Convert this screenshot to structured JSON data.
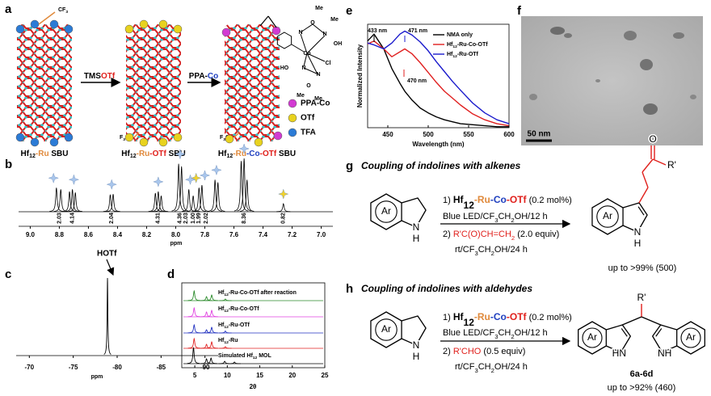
{
  "a": {
    "letter": "a",
    "cf3": [
      "CF",
      "3"
    ],
    "f3c": [
      "F",
      "3",
      "C"
    ],
    "f3c_2": [
      "F",
      "3",
      "C"
    ],
    "arrow1": [
      "TMS",
      "OTf"
    ],
    "arrow2": [
      "PPA-",
      "Co"
    ],
    "sbu1": [
      "Hf",
      "12",
      "-Ru",
      " SBU"
    ],
    "sbu2": [
      "Hf",
      "12",
      "-Ru",
      "-OTf",
      " SBU"
    ],
    "sbu3": [
      "Hf",
      "12",
      "-Ru",
      "-Co",
      "-OTf",
      " SBU"
    ],
    "legend": [
      {
        "name": "PPA-Co",
        "color": "#d23ad2"
      },
      {
        "name": "OTf",
        "color": "#e8d21e"
      },
      {
        "name": "TFA",
        "color": "#2b7bd6"
      }
    ],
    "complex_atoms": [
      "Me",
      "Me",
      "N",
      "O",
      "N",
      "OH",
      "Co",
      "Cl",
      "HO",
      "N",
      "N",
      "O",
      "Me",
      "Me"
    ]
  },
  "b": {
    "letter": "b",
    "xlabel": "ppm",
    "xlim": [
      9.08,
      6.92
    ],
    "xticks": [
      {
        "value": 9,
        "label": "9.0"
      },
      8.8,
      8.6,
      8.4,
      8.2,
      {
        "value": 8,
        "label": "8.0"
      },
      7.8,
      7.6,
      7.4,
      7.2,
      {
        "value": 7,
        "label": "7.0"
      }
    ],
    "peak_ppm": [
      8.82,
      8.79,
      8.73,
      8.71,
      8.69,
      8.45,
      8.43,
      8.14,
      8.12,
      8.1,
      7.98,
      7.96,
      7.91,
      7.88,
      7.84,
      7.82,
      7.73,
      7.71,
      7.55,
      7.53,
      7.51,
      7.26
    ],
    "peak_height": [
      0.45,
      0.42,
      0.38,
      0.42,
      0.36,
      0.32,
      0.33,
      0.35,
      0.38,
      0.3,
      0.9,
      0.85,
      0.42,
      0.3,
      0.45,
      0.5,
      0.6,
      0.55,
      0.95,
      1.0,
      0.6,
      0.15
    ],
    "star_ppm": [
      8.84,
      8.7,
      8.44,
      8.12,
      7.97,
      7.9,
      7.8,
      7.72,
      7.53
    ],
    "yellow_star_ppm": [
      7.86,
      7.26
    ],
    "integrals": [
      {
        "label": "2.03",
        "ppm": 8.8
      },
      {
        "label": "4.14",
        "ppm": 8.71
      },
      {
        "label": "2.04",
        "ppm": 8.44
      },
      {
        "label": "4.31",
        "ppm": 8.12
      },
      {
        "label": "4.36",
        "ppm": 7.97
      },
      {
        "label": "2.03",
        "ppm": 7.93
      },
      {
        "label": "1.00",
        "ppm": 7.88
      },
      {
        "label": "1.99",
        "ppm": 7.84
      },
      {
        "label": "2.02",
        "ppm": 7.79
      },
      {
        "label": "8.36",
        "ppm": 7.53
      },
      {
        "label": "0.82",
        "ppm": 7.26
      }
    ]
  },
  "c": {
    "letter": "c",
    "annotation": "HOTf",
    "xlabel": "ppm",
    "xlim": [
      -68.5,
      -91.5
    ],
    "xticks": [
      -70,
      -75,
      -80,
      -85,
      -90
    ],
    "peak_ppm": [
      -78.9
    ],
    "peak_height": [
      1
    ]
  },
  "d": {
    "letter": "d",
    "xlabel": "2θ",
    "xlim": [
      3,
      25
    ],
    "xticks": [
      5,
      10,
      15,
      20,
      25
    ],
    "series": [
      {
        "name": [
          "Hf",
          "12",
          "-Ru-Co-OTf after reaction"
        ],
        "color": "#2a8a2a",
        "peak_pos": [
          4.9,
          6.8,
          7.6,
          9.7
        ],
        "peak_height": [
          0.6,
          0.25,
          0.35,
          0.1
        ]
      },
      {
        "name": [
          "Hf",
          "12",
          "-Ru-Co-OTf"
        ],
        "color": "#e040e0",
        "peak_pos": [
          4.9,
          6.8,
          7.6
        ],
        "peak_height": [
          0.55,
          0.3,
          0.4
        ]
      },
      {
        "name": [
          "Hf",
          "12",
          "-Ru-OTf"
        ],
        "color": "#2030c0",
        "peak_pos": [
          4.9,
          6.8,
          7.6,
          9.7
        ],
        "peak_height": [
          0.5,
          0.2,
          0.35,
          0.12
        ]
      },
      {
        "name": [
          "Hf",
          "12",
          "-Ru"
        ],
        "color": "#e02020",
        "peak_pos": [
          4.9,
          6.8,
          7.6,
          9.7
        ],
        "peak_height": [
          0.6,
          0.25,
          0.4,
          0.1
        ]
      },
      {
        "name": [
          "Simulated Hf",
          "12",
          " MOL"
        ],
        "color": "#000000",
        "peak_pos": [
          4.8,
          6.8,
          7.5,
          9.6,
          11.1
        ],
        "peak_height": [
          1.0,
          0.3,
          0.35,
          0.15,
          0.1
        ]
      }
    ]
  },
  "e": {
    "letter": "e",
    "xlabel": "Wavelength (nm)",
    "ylabel": "Normalized Intensity",
    "xlim": [
      425,
      600
    ],
    "ylim": [
      0,
      1.05
    ],
    "xticks": [
      450,
      500,
      550,
      600
    ],
    "x": [
      425,
      433,
      445,
      455,
      465,
      471,
      480,
      490,
      500,
      510,
      520,
      530,
      540,
      555,
      570,
      585,
      600
    ],
    "series": [
      {
        "name": [
          "NMA only"
        ],
        "color": "#000000",
        "values": [
          0.88,
          0.95,
          0.8,
          0.6,
          0.45,
          0.37,
          0.28,
          0.2,
          0.15,
          0.11,
          0.08,
          0.06,
          0.04,
          0.03,
          0.02,
          0.01,
          0.01
        ]
      },
      {
        "name": [
          "Hf",
          "12",
          "-Ru-Co-OTf"
        ],
        "color": "#e02020",
        "values": [
          0.85,
          0.88,
          0.8,
          0.72,
          0.77,
          0.8,
          0.75,
          0.66,
          0.56,
          0.46,
          0.37,
          0.3,
          0.23,
          0.14,
          0.08,
          0.04,
          0.02
        ]
      },
      {
        "name": [
          "Hf",
          "12",
          "-Ru-OTf"
        ],
        "color": "#1a1acc",
        "values": [
          0.86,
          0.84,
          0.8,
          0.86,
          0.95,
          0.98,
          0.94,
          0.87,
          0.78,
          0.67,
          0.57,
          0.47,
          0.38,
          0.25,
          0.15,
          0.08,
          0.04
        ]
      }
    ],
    "annotations": [
      {
        "label": "433 nm",
        "x": 433,
        "color": "#000000"
      },
      {
        "label": "471 nm",
        "x": 471,
        "color": "#1a1acc"
      },
      {
        "label": "470 nm",
        "x": 470,
        "color": "#e02020"
      }
    ]
  },
  "f": {
    "letter": "f",
    "scale_bar": "50 nm"
  },
  "g": {
    "letter": "g",
    "title": "Coupling of indolines with alkenes",
    "reactant": {
      "ring": "Ar",
      "n": "N",
      "h": "H"
    },
    "conditions": [
      [
        "1) ",
        "Hf",
        "12",
        "-Ru",
        "-Co",
        "-OTf",
        " (0.2 mol%)"
      ],
      [
        "Blue LED/CF",
        "3",
        "CH",
        "2",
        "OH/12 h"
      ],
      [
        "2) ",
        "R'C(O)CH=CH",
        "2",
        " (2.0 equiv)"
      ],
      [
        "rt/CF",
        "3",
        "CH",
        "2",
        "OH/24 h"
      ]
    ],
    "product": {
      "ring": "Ar",
      "n": "N",
      "h": "H",
      "o": "O",
      "r": "R'"
    },
    "yield": "up to >99% (500)"
  },
  "h": {
    "letter": "h",
    "title": "Coupling of indolines with aldehydes",
    "reactant": {
      "ring": "Ar",
      "n": "N",
      "h": "H"
    },
    "conditions": [
      [
        "1) ",
        "Hf",
        "12",
        "-Ru",
        "-Co",
        "-OTf",
        " (0.2 mol%)"
      ],
      [
        "Blue LED/CF",
        "3",
        "CH",
        "2",
        "OH/12 h"
      ],
      [
        "2) ",
        "R'CHO",
        " (0.5 equiv)"
      ],
      [
        "rt/CF",
        "3",
        "CH",
        "2",
        "OH/24 h"
      ]
    ],
    "product": {
      "ring": [
        "Ar",
        "Ar"
      ],
      "n": [
        "HN",
        "NH"
      ],
      "r": "R'",
      "label": "6a-6d"
    },
    "yield": "up to >92% (460)"
  }
}
